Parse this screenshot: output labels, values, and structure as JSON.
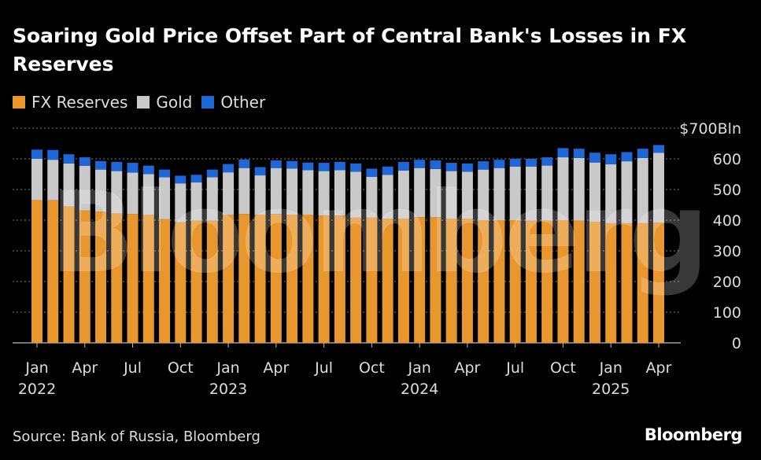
{
  "colors": {
    "fx": "#E8962E",
    "gold": "#C9C9C9",
    "other": "#1F66D6",
    "grid": "#777777",
    "text": "#DDDDDD"
  },
  "chart_data": {
    "type": "bar",
    "stacked": true,
    "title": "Soaring Gold Price Offset Part of Central Bank's Losses in FX Reserves",
    "source": "Source: Bank of Russia, Bloomberg",
    "watermark": "Bloomberg",
    "ylim": [
      0,
      700
    ],
    "y_ticks": [
      {
        "value": 0,
        "label": "0"
      },
      {
        "value": 100,
        "label": "100"
      },
      {
        "value": 200,
        "label": "200"
      },
      {
        "value": 300,
        "label": "300"
      },
      {
        "value": 400,
        "label": "400"
      },
      {
        "value": 500,
        "label": "500"
      },
      {
        "value": 600,
        "label": "600"
      },
      {
        "value": 700,
        "label": "$700Bln"
      }
    ],
    "x_ticks": [
      {
        "index": 0,
        "label": "Jan",
        "year": "2022"
      },
      {
        "index": 3,
        "label": "Apr",
        "year": ""
      },
      {
        "index": 6,
        "label": "Jul",
        "year": ""
      },
      {
        "index": 9,
        "label": "Oct",
        "year": ""
      },
      {
        "index": 12,
        "label": "Jan",
        "year": "2023"
      },
      {
        "index": 15,
        "label": "Apr",
        "year": ""
      },
      {
        "index": 18,
        "label": "Jul",
        "year": ""
      },
      {
        "index": 21,
        "label": "Oct",
        "year": ""
      },
      {
        "index": 24,
        "label": "Jan",
        "year": "2024"
      },
      {
        "index": 27,
        "label": "Apr",
        "year": ""
      },
      {
        "index": 30,
        "label": "Jul",
        "year": ""
      },
      {
        "index": 33,
        "label": "Oct",
        "year": ""
      },
      {
        "index": 36,
        "label": "Jan",
        "year": "2025"
      },
      {
        "index": 39,
        "label": "Apr",
        "year": ""
      }
    ],
    "categories": [
      "2022-01",
      "2022-02",
      "2022-03",
      "2022-04",
      "2022-05",
      "2022-06",
      "2022-07",
      "2022-08",
      "2022-09",
      "2022-10",
      "2022-11",
      "2022-12",
      "2023-01",
      "2023-02",
      "2023-03",
      "2023-04",
      "2023-05",
      "2023-06",
      "2023-07",
      "2023-08",
      "2023-09",
      "2023-10",
      "2023-11",
      "2023-12",
      "2024-01",
      "2024-02",
      "2024-03",
      "2024-04",
      "2024-05",
      "2024-06",
      "2024-07",
      "2024-08",
      "2024-09",
      "2024-10",
      "2024-11",
      "2024-12",
      "2025-01",
      "2025-02",
      "2025-03",
      "2025-04"
    ],
    "series": [
      {
        "name": "FX Reserves",
        "key": "fx",
        "values": [
          465,
          465,
          445,
          432,
          428,
          422,
          420,
          418,
          403,
          393,
          398,
          398,
          418,
          420,
          418,
          420,
          418,
          418,
          415,
          415,
          408,
          408,
          405,
          405,
          410,
          410,
          405,
          405,
          400,
          400,
          400,
          398,
          398,
          400,
          398,
          395,
          390,
          390,
          390,
          392
        ]
      },
      {
        "name": "Gold",
        "key": "gold",
        "values": [
          135,
          132,
          140,
          145,
          137,
          138,
          135,
          132,
          137,
          127,
          125,
          142,
          138,
          150,
          128,
          150,
          150,
          145,
          145,
          148,
          150,
          133,
          143,
          157,
          160,
          157,
          155,
          153,
          165,
          170,
          175,
          177,
          180,
          205,
          205,
          193,
          192,
          202,
          213,
          228
        ]
      },
      {
        "name": "Other",
        "key": "other",
        "values": [
          30,
          32,
          30,
          28,
          28,
          30,
          32,
          28,
          25,
          25,
          25,
          25,
          27,
          28,
          27,
          25,
          25,
          25,
          27,
          27,
          27,
          27,
          27,
          28,
          27,
          28,
          27,
          27,
          27,
          27,
          25,
          25,
          27,
          30,
          30,
          32,
          33,
          30,
          30,
          25
        ]
      }
    ]
  }
}
